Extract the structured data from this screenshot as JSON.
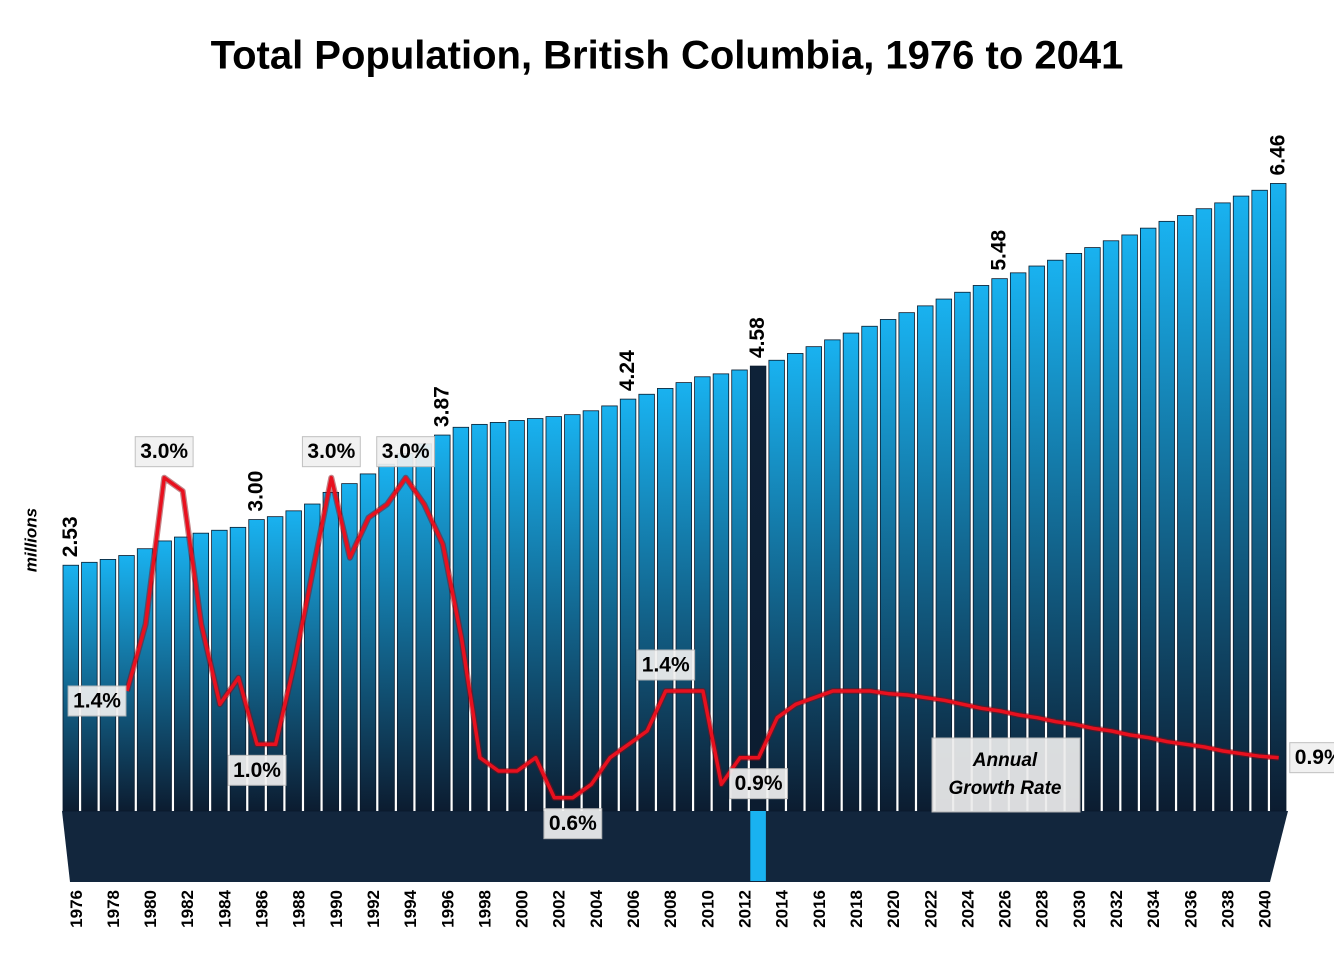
{
  "chart_data": {
    "type": "bar",
    "title": "Total Population, British Columbia, 1976 to 2041",
    "y_label": "millions",
    "annotation": [
      "Annual",
      "Growth Rate"
    ],
    "categories": [
      "1976",
      null,
      "1978",
      null,
      "1980",
      null,
      "1982",
      null,
      "1984",
      null,
      "1986",
      null,
      "1988",
      null,
      "1990",
      null,
      "1992",
      null,
      "1994",
      null,
      "1996",
      null,
      "1998",
      null,
      "2000",
      null,
      "2002",
      null,
      "2004",
      null,
      "2006",
      null,
      "2008",
      null,
      "2010",
      null,
      "2012",
      null,
      "2014",
      null,
      "2016",
      null,
      "2018",
      null,
      "2020",
      null,
      "2022",
      null,
      "2024",
      null,
      "2026",
      null,
      "2028",
      null,
      "2030",
      null,
      "2032",
      null,
      "2034",
      null,
      "2036",
      null,
      "2038",
      null,
      "2040",
      null
    ],
    "ylim": [
      0,
      7
    ],
    "y2lim": [
      0.5,
      5.6
    ],
    "series": [
      {
        "name": "Total Population",
        "type": "bar",
        "values": [
          2.53,
          2.56,
          2.59,
          2.63,
          2.7,
          2.78,
          2.82,
          2.86,
          2.89,
          2.92,
          3.0,
          3.03,
          3.09,
          3.16,
          3.28,
          3.37,
          3.47,
          3.57,
          3.68,
          3.78,
          3.87,
          3.95,
          3.98,
          4.0,
          4.02,
          4.04,
          4.06,
          4.08,
          4.12,
          4.17,
          4.24,
          4.29,
          4.35,
          4.41,
          4.47,
          4.5,
          4.54,
          4.58,
          4.64,
          4.71,
          4.78,
          4.85,
          4.92,
          4.99,
          5.06,
          5.13,
          5.2,
          5.27,
          5.34,
          5.41,
          5.48,
          5.54,
          5.61,
          5.67,
          5.74,
          5.8,
          5.87,
          5.93,
          6.0,
          6.07,
          6.13,
          6.2,
          6.26,
          6.33,
          6.39,
          6.46
        ],
        "value_labels": [
          "2.53",
          null,
          null,
          null,
          null,
          null,
          null,
          null,
          null,
          null,
          "3.00",
          null,
          null,
          null,
          null,
          null,
          null,
          null,
          null,
          null,
          "3.87",
          null,
          null,
          null,
          null,
          null,
          null,
          null,
          null,
          null,
          "4.24",
          null,
          null,
          null,
          null,
          null,
          null,
          "4.58",
          null,
          null,
          null,
          null,
          null,
          null,
          null,
          null,
          null,
          null,
          null,
          null,
          "5.48",
          null,
          null,
          null,
          null,
          null,
          null,
          null,
          null,
          null,
          null,
          null,
          null,
          null,
          null,
          "6.46"
        ],
        "colors": [
          "#19b2f0",
          "#19b2f0",
          "#19b2f0",
          "#19b2f0",
          "#19b2f0",
          "#19b2f0",
          "#19b2f0",
          "#19b2f0",
          "#19b2f0",
          "#19b2f0",
          "#19b2f0",
          "#19b2f0",
          "#19b2f0",
          "#19b2f0",
          "#19b2f0",
          "#19b2f0",
          "#19b2f0",
          "#19b2f0",
          "#19b2f0",
          "#19b2f0",
          "#19b2f0",
          "#19b2f0",
          "#19b2f0",
          "#19b2f0",
          "#19b2f0",
          "#19b2f0",
          "#19b2f0",
          "#19b2f0",
          "#19b2f0",
          "#19b2f0",
          "#19b2f0",
          "#19b2f0",
          "#19b2f0",
          "#19b2f0",
          "#19b2f0",
          "#19b2f0",
          "#19b2f0",
          "#0e2238",
          "#19b2f0",
          "#19b2f0",
          "#19b2f0",
          "#19b2f0",
          "#19b2f0",
          "#19b2f0",
          "#19b2f0",
          "#19b2f0",
          "#19b2f0",
          "#19b2f0",
          "#19b2f0",
          "#19b2f0",
          "#19b2f0",
          "#19b2f0",
          "#19b2f0",
          "#19b2f0",
          "#19b2f0",
          "#19b2f0",
          "#19b2f0",
          "#19b2f0",
          "#19b2f0",
          "#19b2f0",
          "#19b2f0",
          "#19b2f0",
          "#19b2f0",
          "#19b2f0",
          "#19b2f0",
          "#19b2f0"
        ]
      },
      {
        "name": "Annual Growth Rate",
        "type": "line",
        "axis": "y2",
        "color": "#e8101e",
        "values": [
          null,
          null,
          null,
          1.4,
          1.9,
          3.0,
          2.9,
          1.9,
          1.3,
          1.5,
          1.0,
          1.0,
          1.6,
          2.3,
          3.0,
          2.4,
          2.7,
          2.8,
          3.0,
          2.8,
          2.5,
          1.8,
          0.9,
          0.8,
          0.8,
          0.9,
          0.6,
          0.6,
          0.7,
          0.9,
          1.0,
          1.1,
          1.4,
          1.4,
          1.4,
          0.7,
          0.9,
          0.9,
          1.2,
          1.3,
          1.35,
          1.4,
          1.4,
          1.4,
          1.38,
          1.37,
          1.35,
          1.33,
          1.3,
          1.27,
          1.25,
          1.22,
          1.2,
          1.17,
          1.15,
          1.12,
          1.1,
          1.07,
          1.05,
          1.02,
          1.0,
          0.98,
          0.95,
          0.93,
          0.91,
          0.9
        ],
        "value_labels": [
          null,
          null,
          null,
          "1.4%",
          null,
          "3.0%",
          null,
          null,
          null,
          null,
          "1.0%",
          null,
          null,
          null,
          "3.0%",
          null,
          null,
          null,
          "3.0%",
          null,
          null,
          null,
          null,
          null,
          null,
          null,
          null,
          "0.6%",
          null,
          null,
          null,
          null,
          "1.4%",
          null,
          null,
          null,
          null,
          "0.9%",
          null,
          null,
          null,
          null,
          null,
          null,
          null,
          null,
          null,
          null,
          null,
          null,
          null,
          null,
          null,
          null,
          null,
          null,
          null,
          null,
          null,
          null,
          null,
          null,
          null,
          null,
          null,
          "0.9%"
        ]
      }
    ]
  }
}
